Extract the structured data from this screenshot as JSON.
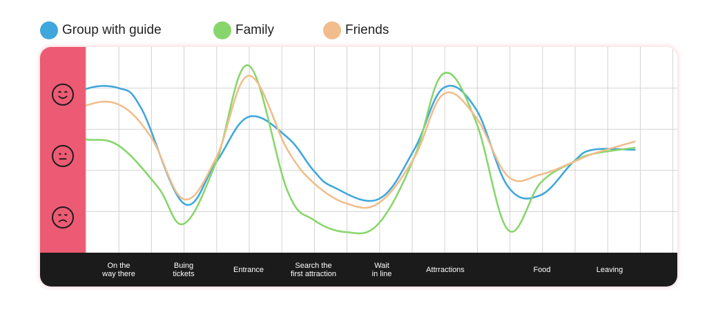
{
  "chart_data": {
    "type": "line",
    "title": "",
    "xlabel": "",
    "ylabel": "",
    "categories": [
      "On the\nway there",
      "Buing\ntickets",
      "Entrance",
      "Search the\nfirst attraction",
      "Wait\nin line",
      "Attrractions",
      "Food",
      "Leaving"
    ],
    "mood_levels": [
      "happy-face-icon",
      "neutral-face-icon",
      "sad-face-icon"
    ],
    "ylim": [
      0,
      5
    ],
    "grid": true,
    "legend_position": "top",
    "series": [
      {
        "name": "Group with guide",
        "color": "#3fa7dc",
        "x": [
          -1.05,
          -0.55,
          0.0,
          0.35,
          1.0,
          1.5,
          2.0,
          2.6,
          3.0,
          3.3,
          4.0,
          4.55,
          5.0,
          5.5,
          6.0,
          6.5,
          7.0,
          7.3,
          7.95
        ],
        "y": [
          3.3,
          3.95,
          4.0,
          3.5,
          1.2,
          2.2,
          3.3,
          2.8,
          2.0,
          1.6,
          1.3,
          2.5,
          4.0,
          3.5,
          1.6,
          1.4,
          2.2,
          2.5,
          2.5
        ]
      },
      {
        "name": "Family",
        "color": "#88d66b",
        "x": [
          -1.05,
          -0.5,
          0.0,
          0.6,
          1.0,
          1.5,
          2.0,
          2.6,
          3.0,
          3.5,
          4.0,
          4.55,
          5.0,
          5.5,
          6.0,
          6.5,
          7.0,
          7.3,
          7.95
        ],
        "y": [
          2.8,
          2.75,
          2.6,
          1.6,
          0.7,
          2.2,
          4.55,
          1.5,
          0.8,
          0.5,
          0.7,
          2.3,
          4.35,
          3.2,
          0.55,
          1.7,
          2.2,
          2.4,
          2.55
        ]
      },
      {
        "name": "Friends",
        "color": "#f1bd8c",
        "x": [
          -1.05,
          -0.55,
          0.0,
          0.5,
          1.0,
          1.5,
          2.0,
          2.6,
          3.0,
          3.5,
          4.0,
          4.55,
          5.0,
          5.5,
          6.0,
          6.5,
          7.0,
          7.3,
          7.95
        ],
        "y": [
          3.0,
          3.55,
          3.6,
          2.8,
          1.3,
          2.3,
          4.3,
          2.5,
          1.7,
          1.2,
          1.2,
          2.3,
          3.85,
          3.3,
          1.85,
          1.9,
          2.2,
          2.4,
          2.7
        ]
      }
    ]
  }
}
